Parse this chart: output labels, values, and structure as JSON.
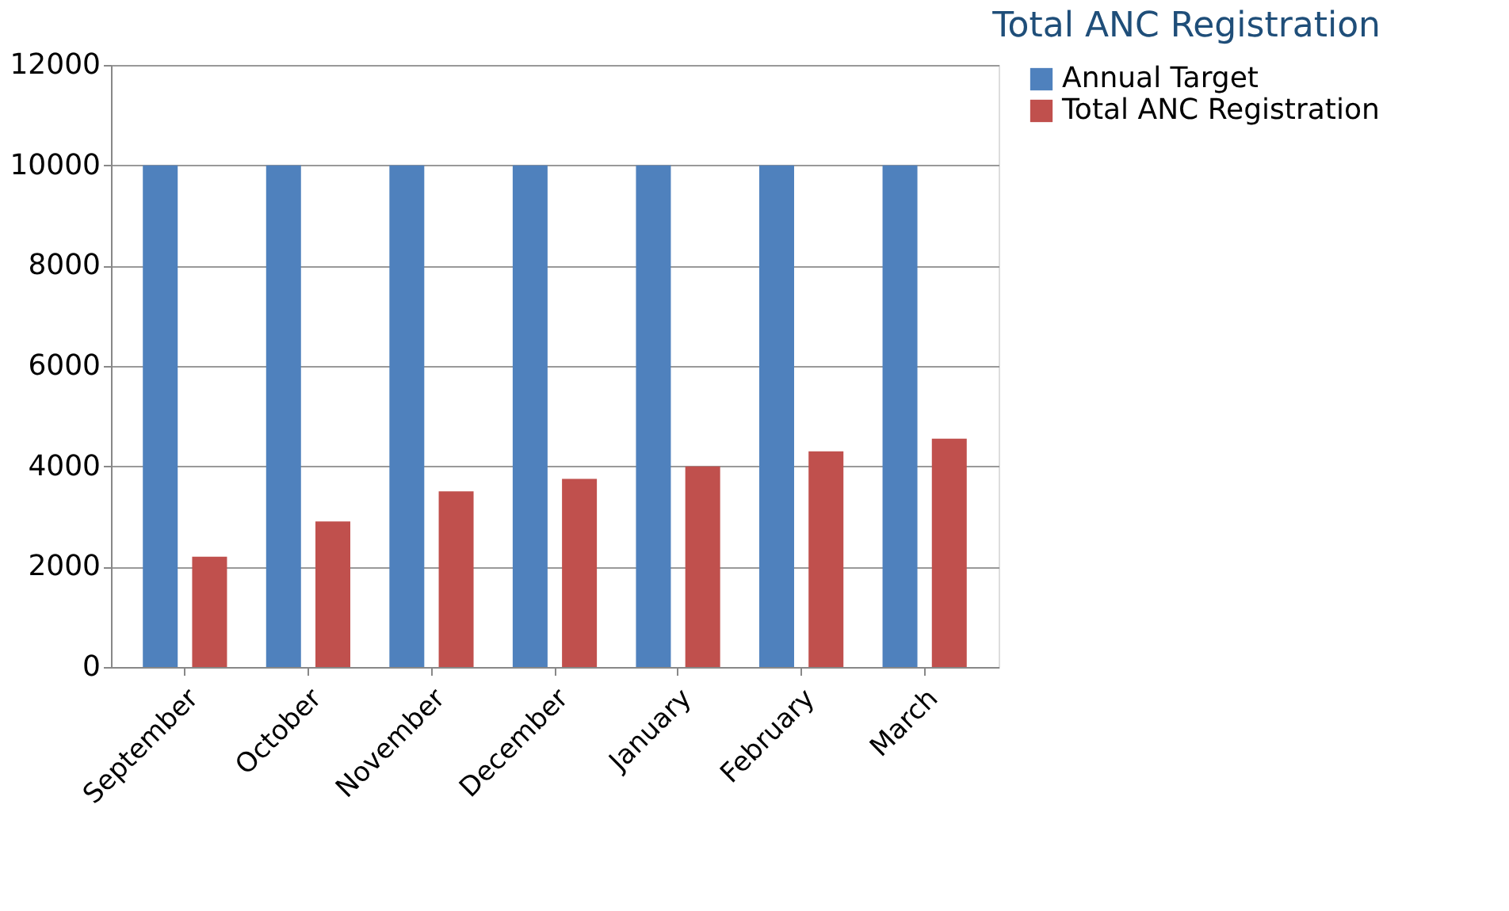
{
  "chart_data": {
    "type": "bar",
    "title": "Total ANC Registration",
    "categories": [
      "September",
      "October",
      "November",
      "December",
      "January",
      "February",
      "March"
    ],
    "series": [
      {
        "name": "Annual Target",
        "color": "#4f81bd",
        "values": [
          10000,
          10000,
          10000,
          10000,
          10000,
          10000,
          10000
        ]
      },
      {
        "name": "Total ANC Registration",
        "color": "#c0504d",
        "values": [
          2200,
          2900,
          3500,
          3750,
          4000,
          4300,
          4550
        ]
      }
    ],
    "ylim": [
      0,
      12000
    ],
    "yticks": [
      0,
      2000,
      4000,
      6000,
      8000,
      10000,
      12000
    ],
    "grid": "y",
    "legend": "right"
  }
}
